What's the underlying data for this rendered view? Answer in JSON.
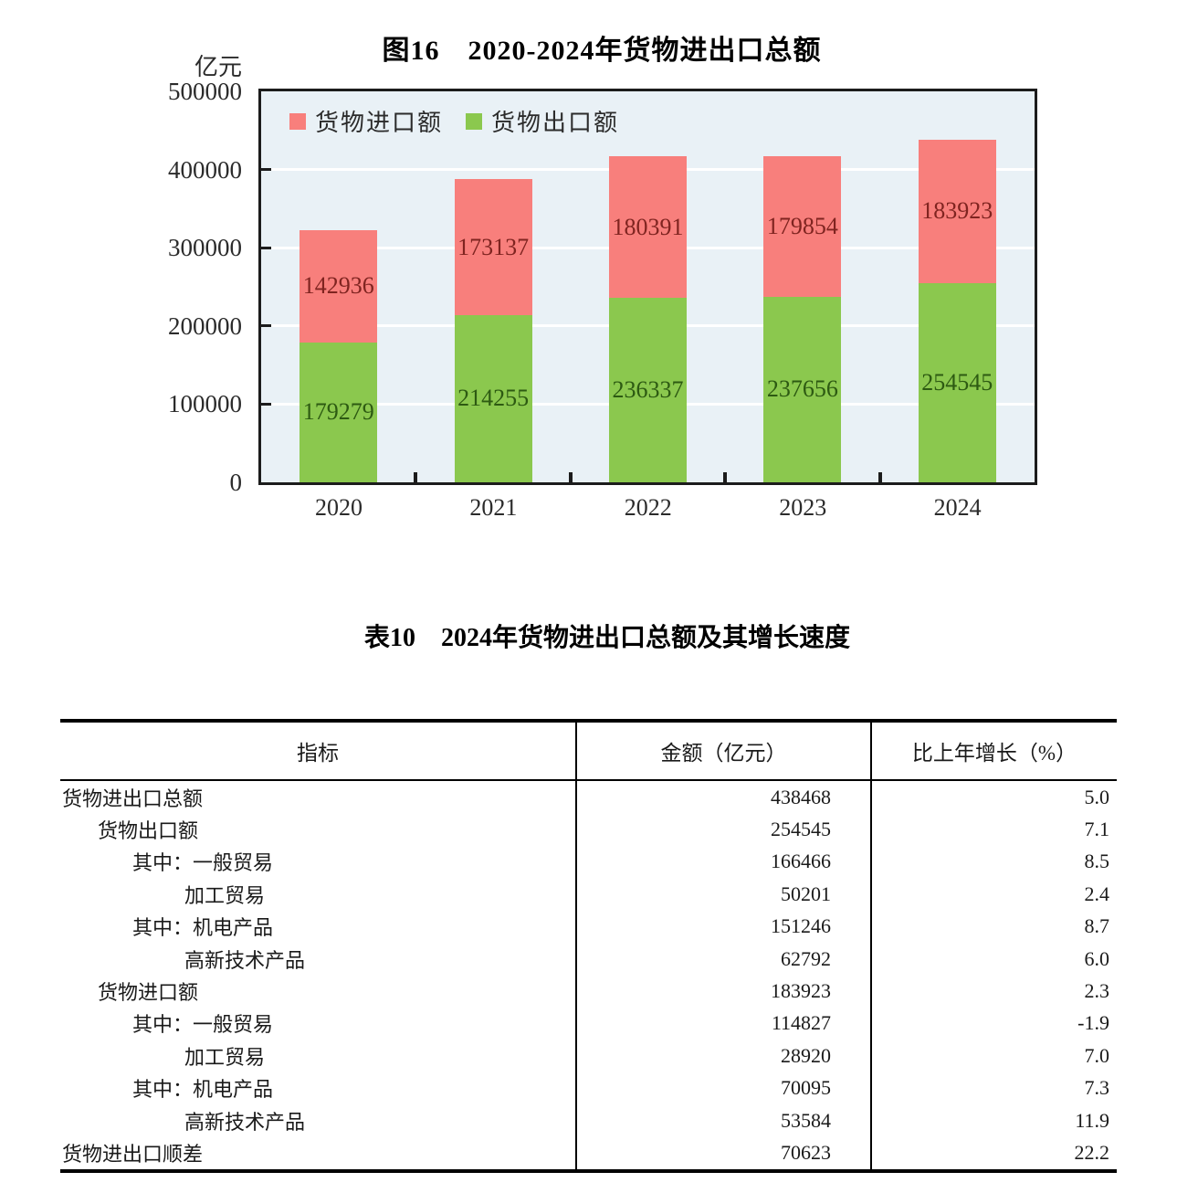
{
  "chart_data": [
    {
      "type": "bar",
      "stacked": true,
      "title": "图16　2020-2024年货物进出口总额",
      "ylabel": "亿元",
      "xlabel": "",
      "categories": [
        "2020",
        "2021",
        "2022",
        "2023",
        "2024"
      ],
      "series": [
        {
          "name": "货物出口额",
          "color": "#8bc84e",
          "label_color": "#2d5a12",
          "values": [
            179279,
            214255,
            236337,
            237656,
            254545
          ]
        },
        {
          "name": "货物进口额",
          "color": "#f87f7c",
          "label_color": "#7f2420",
          "values": [
            142936,
            173137,
            180391,
            179854,
            183923
          ]
        }
      ],
      "legend_order": [
        1,
        0
      ],
      "ylim": [
        0,
        500000
      ],
      "ytick_step": 100000,
      "grid": true,
      "legend_position": "top-left",
      "plot_bg": "#e9f1f6",
      "gridline_color": "#ffffff",
      "axis_color": "#1c1c1c"
    },
    {
      "type": "table",
      "title": "表10　2024年货物进出口总额及其增长速度",
      "columns": [
        "指标",
        "金额（亿元）",
        "比上年增长（%）"
      ],
      "rows": [
        {
          "indicator": "货物进出口总额",
          "indent": 0,
          "amount": "438468",
          "growth": "5.0"
        },
        {
          "indicator": "货物出口额",
          "indent": 1,
          "amount": "254545",
          "growth": "7.1"
        },
        {
          "indicator": "其中：一般贸易",
          "indent": 2,
          "amount": "166466",
          "growth": "8.5"
        },
        {
          "indicator": "加工贸易",
          "indent": 3,
          "amount": "50201",
          "growth": "2.4"
        },
        {
          "indicator": "其中：机电产品",
          "indent": 2,
          "amount": "151246",
          "growth": "8.7"
        },
        {
          "indicator": "高新技术产品",
          "indent": 3,
          "amount": "62792",
          "growth": "6.0"
        },
        {
          "indicator": "货物进口额",
          "indent": 1,
          "amount": "183923",
          "growth": "2.3"
        },
        {
          "indicator": "其中：一般贸易",
          "indent": 2,
          "amount": "114827",
          "growth": "-1.9"
        },
        {
          "indicator": "加工贸易",
          "indent": 3,
          "amount": "28920",
          "growth": "7.0"
        },
        {
          "indicator": "其中：机电产品",
          "indent": 2,
          "amount": "70095",
          "growth": "7.3"
        },
        {
          "indicator": "高新技术产品",
          "indent": 3,
          "amount": "53584",
          "growth": "11.9"
        },
        {
          "indicator": "货物进出口顺差",
          "indent": 0,
          "amount": "70623",
          "growth": "22.2"
        }
      ]
    }
  ]
}
